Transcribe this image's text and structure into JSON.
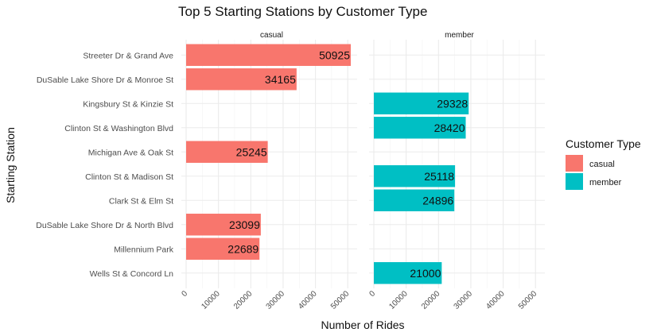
{
  "chart_data": {
    "type": "bar",
    "orientation": "horizontal",
    "title": "Top 5 Starting Stations by Customer Type",
    "xlabel": "Number of Rides",
    "ylabel": "Starting Station",
    "xlim": [
      0,
      55000
    ],
    "x_ticks": [
      "0",
      "10000",
      "20000",
      "30000",
      "40000",
      "50000"
    ],
    "categories": [
      "Streeter Dr & Grand Ave",
      "DuSable Lake Shore Dr & Monroe St",
      "Kingsbury St & Kinzie St",
      "Clinton St & Washington Blvd",
      "Michigan Ave & Oak St",
      "Clinton St & Madison St",
      "Clark St & Elm St",
      "DuSable Lake Shore Dr & North Blvd",
      "Millennium Park",
      "Wells St & Concord Ln"
    ],
    "facets": [
      "casual",
      "member"
    ],
    "legend": {
      "title": "Customer Type",
      "position": "right"
    },
    "grid": true,
    "series": [
      {
        "name": "casual",
        "color": "#F8766D",
        "values": [
          50925,
          34165,
          null,
          null,
          25245,
          null,
          null,
          23099,
          22689,
          null
        ]
      },
      {
        "name": "member",
        "color": "#00BFC4",
        "values": [
          null,
          null,
          29328,
          28420,
          null,
          25118,
          24896,
          null,
          null,
          21000
        ]
      }
    ]
  }
}
